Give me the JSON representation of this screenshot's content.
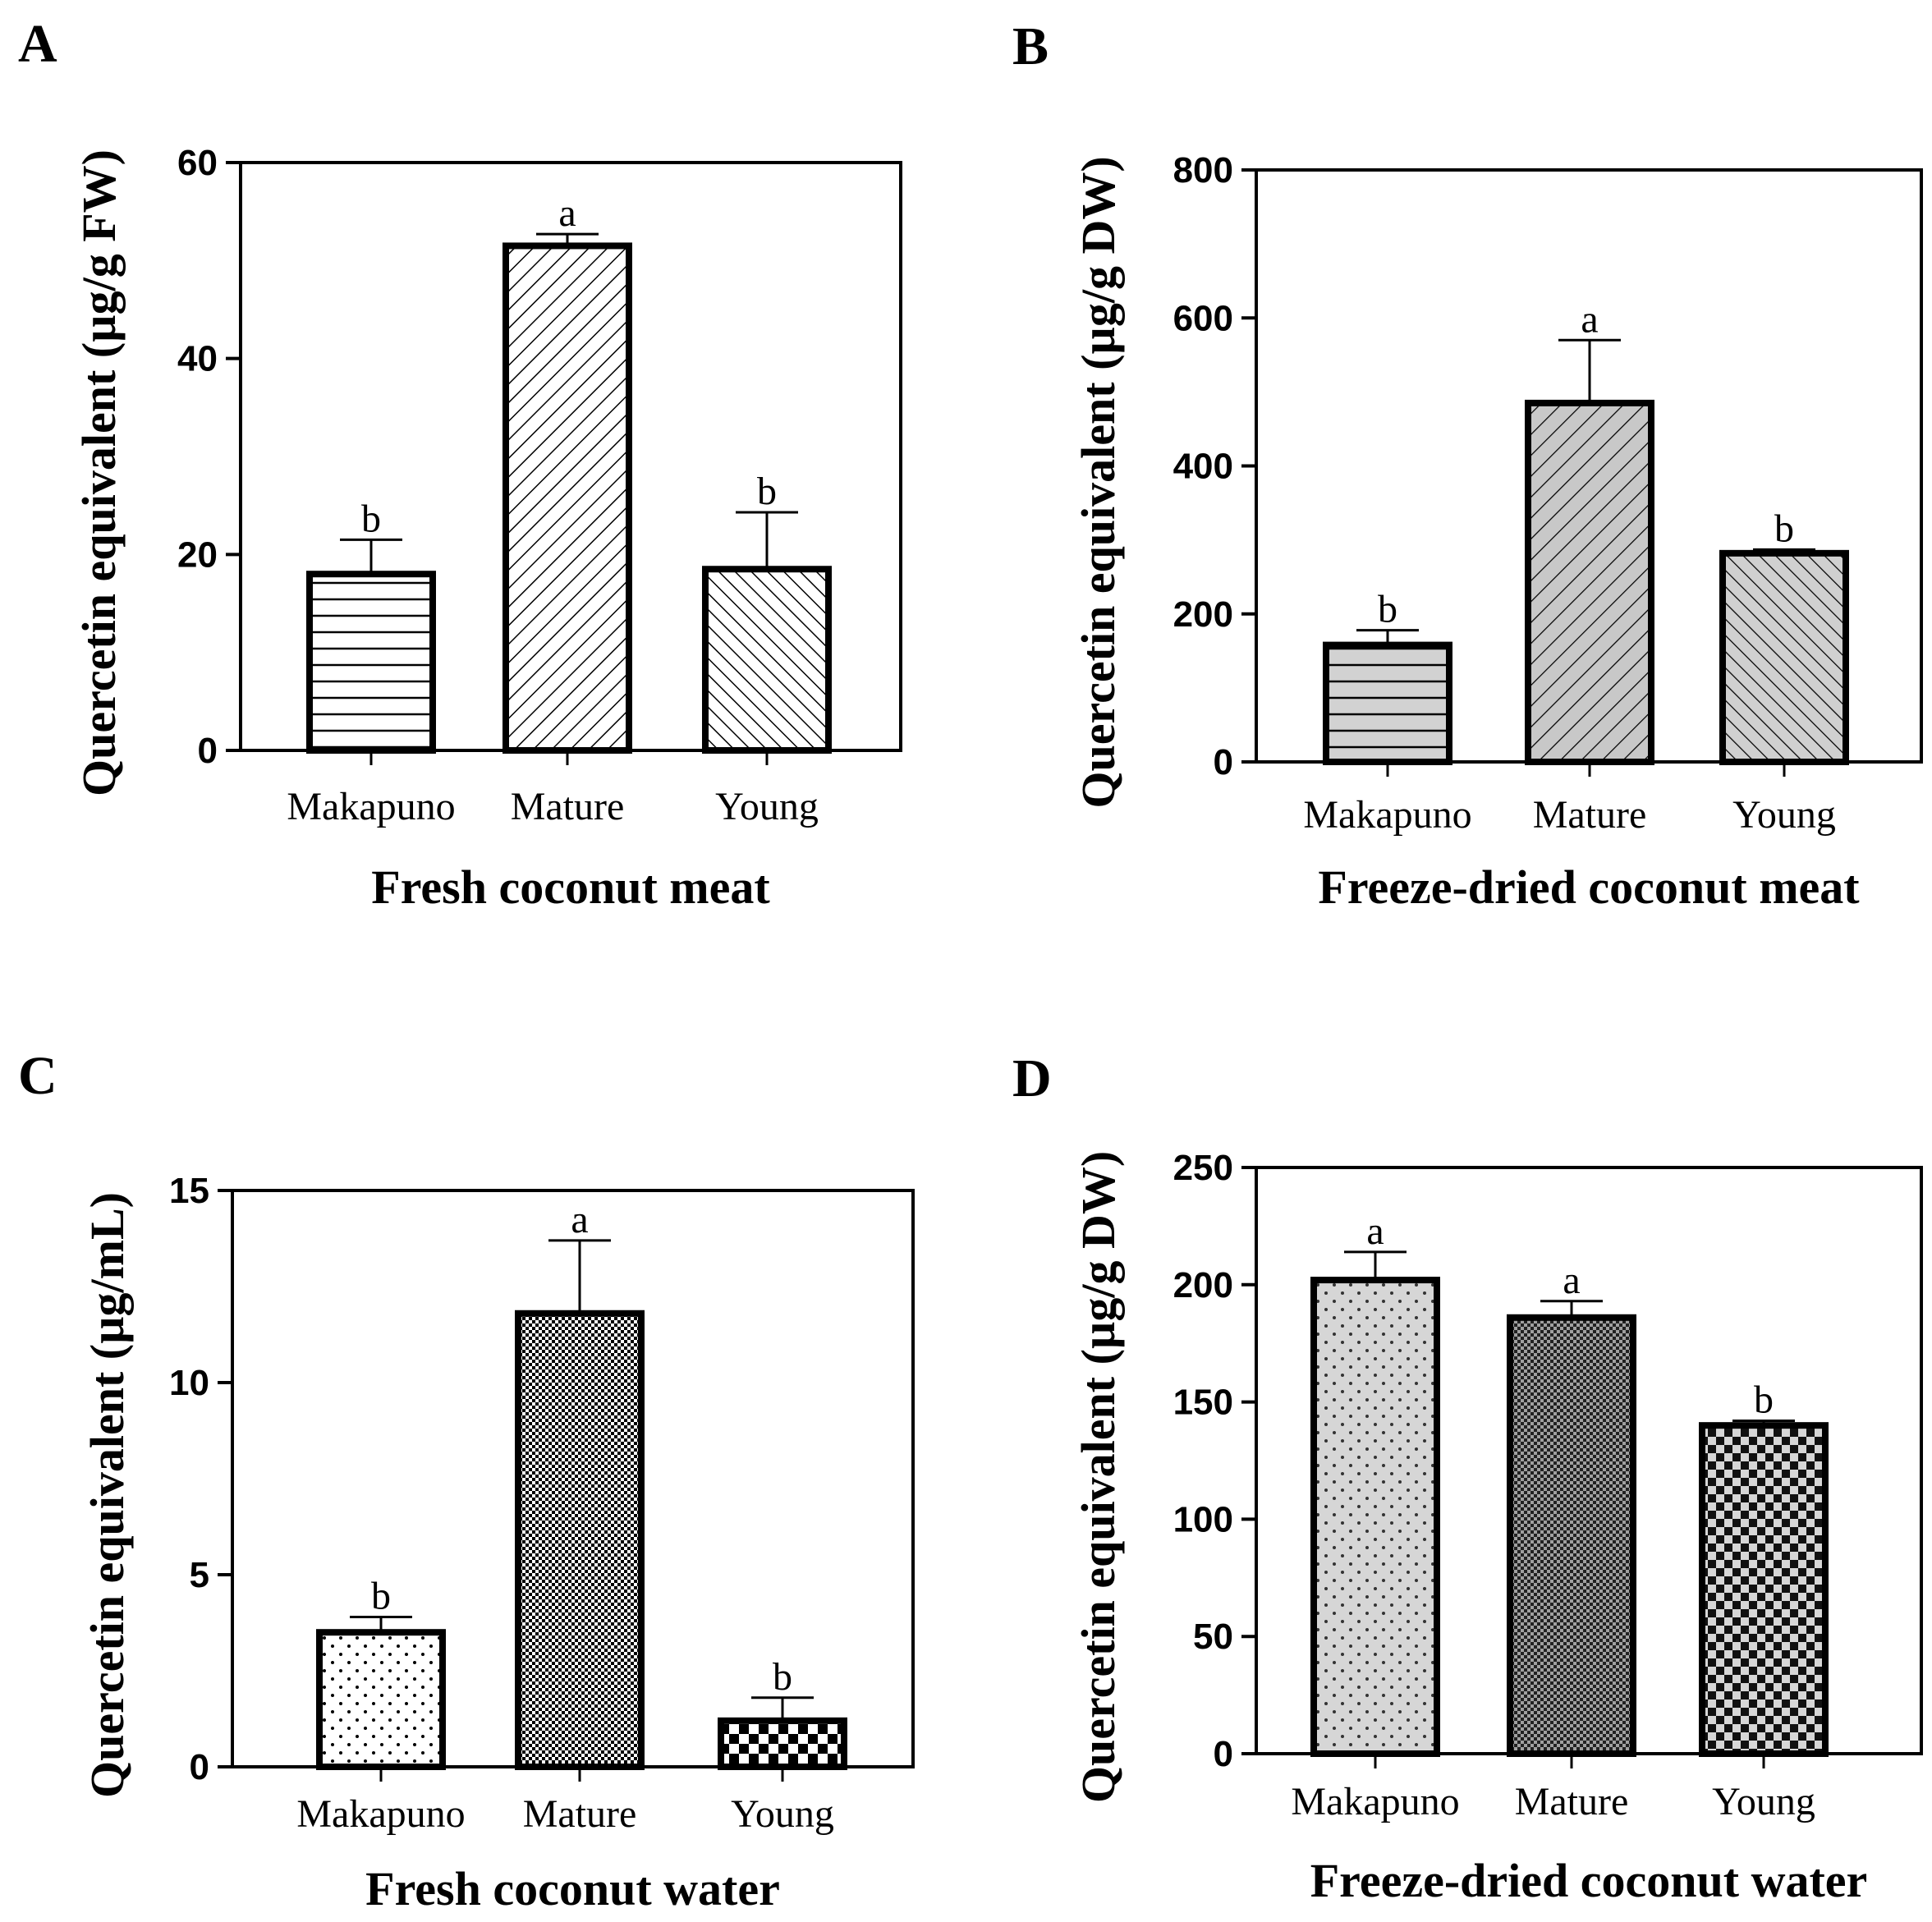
{
  "chart_data": [
    {
      "type": "bar",
      "panel": "A",
      "categories": [
        "Makapuno",
        "Mature",
        "Young"
      ],
      "values": [
        18,
        51.5,
        18.5
      ],
      "errors": [
        3.5,
        1.2,
        5.8
      ],
      "significance": [
        "b",
        "a",
        "b"
      ],
      "xlabel": "Fresh coconut meat",
      "ylabel": "Quercetin equivalent (µg/g FW)",
      "ylim": [
        0,
        60
      ],
      "yticks": [
        "0",
        "20",
        "40",
        "60"
      ],
      "patterns": [
        "horizontal-lines",
        "diagonal-up",
        "diagonal-down"
      ],
      "grid": false
    },
    {
      "type": "bar",
      "panel": "B",
      "categories": [
        "Makapuno",
        "Mature",
        "Young"
      ],
      "values": [
        158,
        485,
        282
      ],
      "errors": [
        20,
        85,
        5
      ],
      "significance": [
        "b",
        "a",
        "b"
      ],
      "xlabel": "Freeze-dried coconut meat",
      "ylabel": "Quercetin equivalent (µg/g DW)",
      "ylim": [
        0,
        800
      ],
      "yticks": [
        "0",
        "200",
        "400",
        "600",
        "800"
      ],
      "patterns": [
        "horizontal-lines-gray",
        "diagonal-up-gray",
        "diagonal-down-gray"
      ],
      "grid": false
    },
    {
      "type": "bar",
      "panel": "C",
      "categories": [
        "Makapuno",
        "Mature",
        "Young"
      ],
      "values": [
        3.5,
        11.8,
        1.2
      ],
      "errors": [
        0.4,
        1.9,
        0.6
      ],
      "significance": [
        "b",
        "a",
        "b"
      ],
      "xlabel": "Fresh coconut water",
      "ylabel": "Quercetin equivalent (µg/mL)",
      "ylim": [
        0,
        15
      ],
      "yticks": [
        "0",
        "5",
        "10",
        "15"
      ],
      "patterns": [
        "sparse-dots",
        "fine-checker",
        "coarse-checker"
      ],
      "grid": false
    },
    {
      "type": "bar",
      "panel": "D",
      "categories": [
        "Makapuno",
        "Mature",
        "Young"
      ],
      "values": [
        202,
        186,
        140
      ],
      "errors": [
        12,
        7,
        2
      ],
      "significance": [
        "a",
        "a",
        "b"
      ],
      "xlabel": "Freeze-dried coconut water",
      "ylabel": "Quercetin equivalent (µg/g DW)",
      "ylim": [
        0,
        250
      ],
      "yticks": [
        "0",
        "50",
        "100",
        "150",
        "200",
        "250"
      ],
      "patterns": [
        "dots-gray",
        "fine-checker-gray",
        "coarse-checker-gray"
      ],
      "grid": false
    }
  ]
}
